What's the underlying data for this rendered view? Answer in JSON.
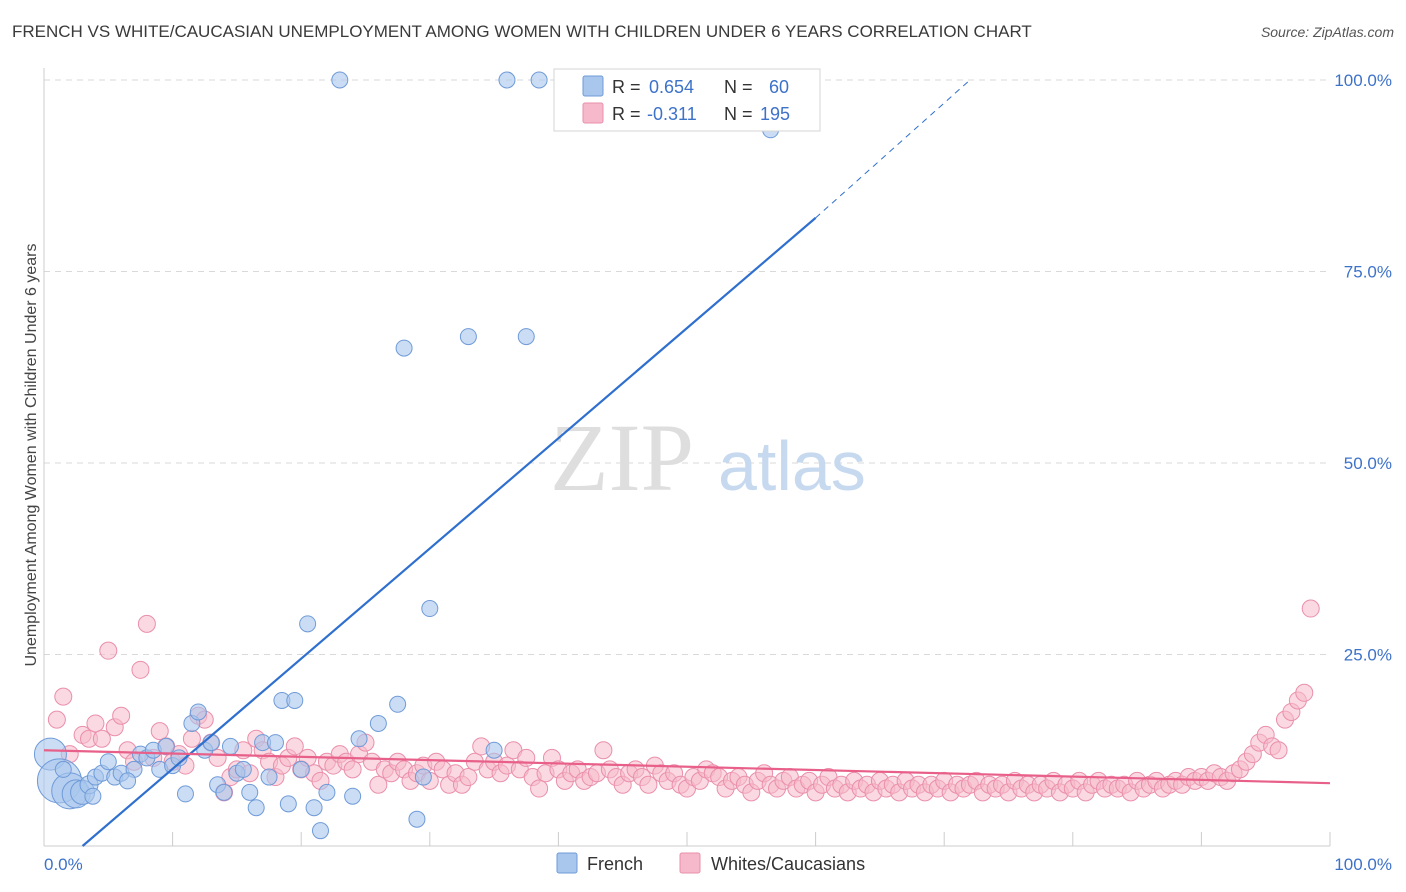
{
  "title": "FRENCH VS WHITE/CAUCASIAN UNEMPLOYMENT AMONG WOMEN WITH CHILDREN UNDER 6 YEARS CORRELATION CHART",
  "source": "Source: ZipAtlas.com",
  "watermark": {
    "zip": "ZIP",
    "atlas": "atlas"
  },
  "colors": {
    "french_fill": "#a9c6ec",
    "french_stroke": "#6f9bd8",
    "french_line": "#2f6fce",
    "white_fill": "#f6b9cb",
    "white_stroke": "#ea8fab",
    "white_line": "#e8608a",
    "tick_text": "#3d72c9",
    "grid": "#d9d9d9"
  },
  "legend": {
    "rows": [
      {
        "series": "French",
        "r_label": "R =",
        "r_value": "0.654",
        "n_label": "N =",
        "n_value": "60"
      },
      {
        "series": "Whites/Caucasians",
        "r_label": "R =",
        "r_value": "-0.311",
        "n_label": "N =",
        "n_value": "195"
      }
    ]
  },
  "bottom_legend": [
    "French",
    "Whites/Caucasians"
  ],
  "chart_data": {
    "type": "scatter",
    "title": "FRENCH VS WHITE/CAUCASIAN UNEMPLOYMENT AMONG WOMEN WITH CHILDREN UNDER 6 YEARS CORRELATION CHART",
    "xlabel": "",
    "ylabel": "Unemployment Among Women with Children Under 6 years",
    "xlim": [
      0,
      100
    ],
    "ylim": [
      0,
      100
    ],
    "x_tick_labels": [
      "0.0%",
      "100.0%"
    ],
    "y_ticks": [
      {
        "value": 25,
        "label": "25.0%"
      },
      {
        "value": 50,
        "label": "50.0%"
      },
      {
        "value": 75,
        "label": "75.0%"
      },
      {
        "value": 100,
        "label": "100.0%"
      }
    ],
    "x_minor_ticks": [
      10,
      20,
      30,
      40,
      50,
      60,
      70,
      80,
      90,
      100
    ],
    "series": [
      {
        "name": "French",
        "r": 0.654,
        "n": 60,
        "trend": {
          "x0": 3.0,
          "y0": 0.0,
          "x1": 60.0,
          "y1": 82.0,
          "dash_to_x": 72.0,
          "dash_to_y": 100.0
        },
        "points": [
          [
            0.5,
            12,
            16
          ],
          [
            1.2,
            8.5,
            22
          ],
          [
            2.0,
            7.2,
            18
          ],
          [
            2.5,
            6.8,
            14
          ],
          [
            3.0,
            7.0,
            12
          ],
          [
            3.5,
            8.0,
            9
          ],
          [
            4.0,
            9.0,
            8
          ],
          [
            4.5,
            9.5,
            8
          ],
          [
            5.0,
            11.0,
            8
          ],
          [
            5.5,
            9.0,
            8
          ],
          [
            6.0,
            9.5,
            8
          ],
          [
            7.0,
            10.0,
            8
          ],
          [
            7.5,
            12.0,
            8
          ],
          [
            8.0,
            11.5,
            8
          ],
          [
            8.5,
            12.5,
            8
          ],
          [
            9.0,
            10.0,
            8
          ],
          [
            9.5,
            13.0,
            8
          ],
          [
            10.0,
            10.5,
            8
          ],
          [
            10.5,
            11.5,
            8
          ],
          [
            11.0,
            6.8,
            8
          ],
          [
            11.5,
            16.0,
            8
          ],
          [
            12.0,
            17.5,
            8
          ],
          [
            12.5,
            12.5,
            8
          ],
          [
            13.0,
            13.5,
            8
          ],
          [
            13.5,
            8.0,
            8
          ],
          [
            14.0,
            7.0,
            8
          ],
          [
            14.5,
            13.0,
            8
          ],
          [
            15.0,
            9.5,
            8
          ],
          [
            15.5,
            10.0,
            8
          ],
          [
            16.0,
            7.0,
            8
          ],
          [
            16.5,
            5.0,
            8
          ],
          [
            17.0,
            13.5,
            8
          ],
          [
            17.5,
            9.0,
            8
          ],
          [
            18.0,
            13.5,
            8
          ],
          [
            18.5,
            19.0,
            8
          ],
          [
            19.0,
            5.5,
            8
          ],
          [
            19.5,
            19.0,
            8
          ],
          [
            20.0,
            10.0,
            8
          ],
          [
            20.5,
            29.0,
            8
          ],
          [
            21.0,
            5.0,
            8
          ],
          [
            21.5,
            2.0,
            8
          ],
          [
            22.0,
            7.0,
            8
          ],
          [
            23.0,
            100.0,
            8
          ],
          [
            24.0,
            6.5,
            8
          ],
          [
            24.5,
            14.0,
            8
          ],
          [
            26.0,
            16.0,
            8
          ],
          [
            27.5,
            18.5,
            8
          ],
          [
            28.0,
            65.0,
            8
          ],
          [
            29.0,
            3.5,
            8
          ],
          [
            29.5,
            9.0,
            8
          ],
          [
            30.0,
            31.0,
            8
          ],
          [
            33.0,
            66.5,
            8
          ],
          [
            35.0,
            12.5,
            8
          ],
          [
            36.0,
            100.0,
            8
          ],
          [
            37.5,
            66.5,
            8
          ],
          [
            38.5,
            100.0,
            8
          ],
          [
            56.5,
            93.5,
            8
          ],
          [
            1.5,
            10.0,
            8
          ],
          [
            3.8,
            6.5,
            8
          ],
          [
            6.5,
            8.5,
            8
          ]
        ]
      },
      {
        "name": "Whites/Caucasians",
        "r": -0.311,
        "n": 195,
        "trend": {
          "x0": 0.0,
          "y0": 12.5,
          "x1": 100.0,
          "y1": 8.2
        },
        "points": [
          [
            1.0,
            16.5
          ],
          [
            1.5,
            19.5
          ],
          [
            2.0,
            12.0
          ],
          [
            3.0,
            14.5
          ],
          [
            3.5,
            14.0
          ],
          [
            4.0,
            16.0
          ],
          [
            4.5,
            14.0
          ],
          [
            5.0,
            25.5
          ],
          [
            5.5,
            15.5
          ],
          [
            6.0,
            17.0
          ],
          [
            6.5,
            12.5
          ],
          [
            7.0,
            11.0
          ],
          [
            7.5,
            23.0
          ],
          [
            8.0,
            29.0
          ],
          [
            8.5,
            11.5
          ],
          [
            9.0,
            15.0
          ],
          [
            9.5,
            13.0
          ],
          [
            10.0,
            11.0
          ],
          [
            10.5,
            12.0
          ],
          [
            11.0,
            10.5
          ],
          [
            11.5,
            14.0
          ],
          [
            12.0,
            17.0
          ],
          [
            12.5,
            16.5
          ],
          [
            13.0,
            13.5
          ],
          [
            13.5,
            11.5
          ],
          [
            14.0,
            7.0
          ],
          [
            14.5,
            9.0
          ],
          [
            15.0,
            10.0
          ],
          [
            15.5,
            12.5
          ],
          [
            16.0,
            9.5
          ],
          [
            16.5,
            14.0
          ],
          [
            17.0,
            12.5
          ],
          [
            17.5,
            11.0
          ],
          [
            18.0,
            9.0
          ],
          [
            18.5,
            10.5
          ],
          [
            19.0,
            11.5
          ],
          [
            19.5,
            13.0
          ],
          [
            20.0,
            10.0
          ],
          [
            20.5,
            11.5
          ],
          [
            21.0,
            9.5
          ],
          [
            21.5,
            8.5
          ],
          [
            22.0,
            11.0
          ],
          [
            22.5,
            10.5
          ],
          [
            23.0,
            12.0
          ],
          [
            23.5,
            11.0
          ],
          [
            24.0,
            10.0
          ],
          [
            24.5,
            12.0
          ],
          [
            25.0,
            13.5
          ],
          [
            25.5,
            11.0
          ],
          [
            26.0,
            8.0
          ],
          [
            26.5,
            10.0
          ],
          [
            27.0,
            9.5
          ],
          [
            27.5,
            11.0
          ],
          [
            28.0,
            10.0
          ],
          [
            28.5,
            8.5
          ],
          [
            29.0,
            9.5
          ],
          [
            29.5,
            10.5
          ],
          [
            30.0,
            8.5
          ],
          [
            30.5,
            11.0
          ],
          [
            31.0,
            10.0
          ],
          [
            31.5,
            8.0
          ],
          [
            32.0,
            9.5
          ],
          [
            32.5,
            8.0
          ],
          [
            33.0,
            9.0
          ],
          [
            33.5,
            11.0
          ],
          [
            34.0,
            13.0
          ],
          [
            34.5,
            10.0
          ],
          [
            35.0,
            11.0
          ],
          [
            35.5,
            9.5
          ],
          [
            36.0,
            10.5
          ],
          [
            36.5,
            12.5
          ],
          [
            37.0,
            10.0
          ],
          [
            37.5,
            11.5
          ],
          [
            38.0,
            9.0
          ],
          [
            38.5,
            7.5
          ],
          [
            39.0,
            9.5
          ],
          [
            39.5,
            11.5
          ],
          [
            40.0,
            10.0
          ],
          [
            40.5,
            8.5
          ],
          [
            41.0,
            9.5
          ],
          [
            41.5,
            10.0
          ],
          [
            42.0,
            8.5
          ],
          [
            42.5,
            9.0
          ],
          [
            43.0,
            9.5
          ],
          [
            43.5,
            12.5
          ],
          [
            44.0,
            10.0
          ],
          [
            44.5,
            9.0
          ],
          [
            45.0,
            8.0
          ],
          [
            45.5,
            9.5
          ],
          [
            46.0,
            10.0
          ],
          [
            46.5,
            9.0
          ],
          [
            47.0,
            8.0
          ],
          [
            47.5,
            10.5
          ],
          [
            48.0,
            9.5
          ],
          [
            48.5,
            8.5
          ],
          [
            49.0,
            9.5
          ],
          [
            49.5,
            8.0
          ],
          [
            50.0,
            7.5
          ],
          [
            50.5,
            9.0
          ],
          [
            51.0,
            8.5
          ],
          [
            51.5,
            10.0
          ],
          [
            52.0,
            9.5
          ],
          [
            52.5,
            9.0
          ],
          [
            53.0,
            7.5
          ],
          [
            53.5,
            8.5
          ],
          [
            54.0,
            9.0
          ],
          [
            54.5,
            8.0
          ],
          [
            55.0,
            7.0
          ],
          [
            55.5,
            8.5
          ],
          [
            56.0,
            9.5
          ],
          [
            56.5,
            8.0
          ],
          [
            57.0,
            7.5
          ],
          [
            57.5,
            8.5
          ],
          [
            58.0,
            9.0
          ],
          [
            58.5,
            7.5
          ],
          [
            59.0,
            8.0
          ],
          [
            59.5,
            8.5
          ],
          [
            60.0,
            7.0
          ],
          [
            60.5,
            8.0
          ],
          [
            61.0,
            9.0
          ],
          [
            61.5,
            7.5
          ],
          [
            62.0,
            8.0
          ],
          [
            62.5,
            7.0
          ],
          [
            63.0,
            8.5
          ],
          [
            63.5,
            7.5
          ],
          [
            64.0,
            8.0
          ],
          [
            64.5,
            7.0
          ],
          [
            65.0,
            8.5
          ],
          [
            65.5,
            7.5
          ],
          [
            66.0,
            8.0
          ],
          [
            66.5,
            7.0
          ],
          [
            67.0,
            8.5
          ],
          [
            67.5,
            7.5
          ],
          [
            68.0,
            8.0
          ],
          [
            68.5,
            7.0
          ],
          [
            69.0,
            8.0
          ],
          [
            69.5,
            7.5
          ],
          [
            70.0,
            8.5
          ],
          [
            70.5,
            7.0
          ],
          [
            71.0,
            8.0
          ],
          [
            71.5,
            7.5
          ],
          [
            72.0,
            8.0
          ],
          [
            72.5,
            8.5
          ],
          [
            73.0,
            7.0
          ],
          [
            73.5,
            8.0
          ],
          [
            74.0,
            7.5
          ],
          [
            74.5,
            8.0
          ],
          [
            75.0,
            7.0
          ],
          [
            75.5,
            8.5
          ],
          [
            76.0,
            7.5
          ],
          [
            76.5,
            8.0
          ],
          [
            77.0,
            7.0
          ],
          [
            77.5,
            8.0
          ],
          [
            78.0,
            7.5
          ],
          [
            78.5,
            8.5
          ],
          [
            79.0,
            7.0
          ],
          [
            79.5,
            8.0
          ],
          [
            80.0,
            7.5
          ],
          [
            80.5,
            8.5
          ],
          [
            81.0,
            7.0
          ],
          [
            81.5,
            8.0
          ],
          [
            82.0,
            8.5
          ],
          [
            82.5,
            7.5
          ],
          [
            83.0,
            8.0
          ],
          [
            83.5,
            7.5
          ],
          [
            84.0,
            8.0
          ],
          [
            84.5,
            7.0
          ],
          [
            85.0,
            8.5
          ],
          [
            85.5,
            7.5
          ],
          [
            86.0,
            8.0
          ],
          [
            86.5,
            8.5
          ],
          [
            87.0,
            7.5
          ],
          [
            87.5,
            8.0
          ],
          [
            88.0,
            8.5
          ],
          [
            88.5,
            8.0
          ],
          [
            89.0,
            9.0
          ],
          [
            89.5,
            8.5
          ],
          [
            90.0,
            9.0
          ],
          [
            90.5,
            8.5
          ],
          [
            91.0,
            9.5
          ],
          [
            91.5,
            9.0
          ],
          [
            92.0,
            8.5
          ],
          [
            92.5,
            9.5
          ],
          [
            93.0,
            10.0
          ],
          [
            93.5,
            11.0
          ],
          [
            94.0,
            12.0
          ],
          [
            94.5,
            13.5
          ],
          [
            95.0,
            14.5
          ],
          [
            95.5,
            13.0
          ],
          [
            96.0,
            12.5
          ],
          [
            96.5,
            16.5
          ],
          [
            97.0,
            17.5
          ],
          [
            97.5,
            19.0
          ],
          [
            98.0,
            20.0
          ],
          [
            98.5,
            31.0
          ]
        ]
      }
    ]
  }
}
